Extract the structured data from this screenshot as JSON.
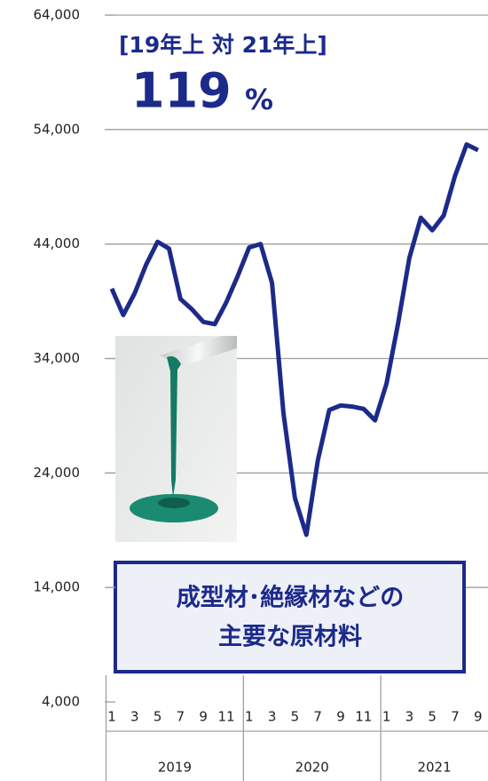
{
  "chart_data": {
    "type": "line",
    "annotations": {
      "heading": "[19年上 対 21年上]",
      "ratio": "119",
      "ratio_unit": "%",
      "box_line1": "成型材･絶縁材などの",
      "box_line2": "主要な原材料"
    },
    "categories": [
      "1",
      null,
      "3",
      null,
      "5",
      null,
      "7",
      null,
      "9",
      null,
      "11",
      null,
      "1",
      null,
      "3",
      null,
      "5",
      null,
      "7",
      null,
      "9",
      null,
      "11",
      null,
      "1",
      null,
      "3",
      null,
      "5",
      null,
      "7",
      null,
      "9"
    ],
    "x_groups": [
      "2019",
      "2020",
      "2021"
    ],
    "series": [
      {
        "color": "#1c2a8a",
        "values": [
          40100,
          37800,
          39700,
          42200,
          44200,
          43600,
          39200,
          38300,
          37200,
          37000,
          38900,
          41200,
          43700,
          44000,
          40600,
          29200,
          21800,
          18600,
          25100,
          29500,
          29900,
          29800,
          29600,
          28600,
          31800,
          37000,
          42800,
          46300,
          45200,
          46500,
          50000,
          52700,
          52200
        ]
      }
    ],
    "ylim": [
      4000,
      64000
    ],
    "yticks": [
      {
        "value": 4000,
        "label": "4,000"
      },
      {
        "value": 14000,
        "label": "14,000"
      },
      {
        "value": 24000,
        "label": "24,000"
      },
      {
        "value": 34000,
        "label": "34,000"
      },
      {
        "value": 44000,
        "label": "44,000"
      },
      {
        "value": 54000,
        "label": "54,000"
      },
      {
        "value": 64000,
        "label": "64,000"
      }
    ],
    "grid": true
  }
}
